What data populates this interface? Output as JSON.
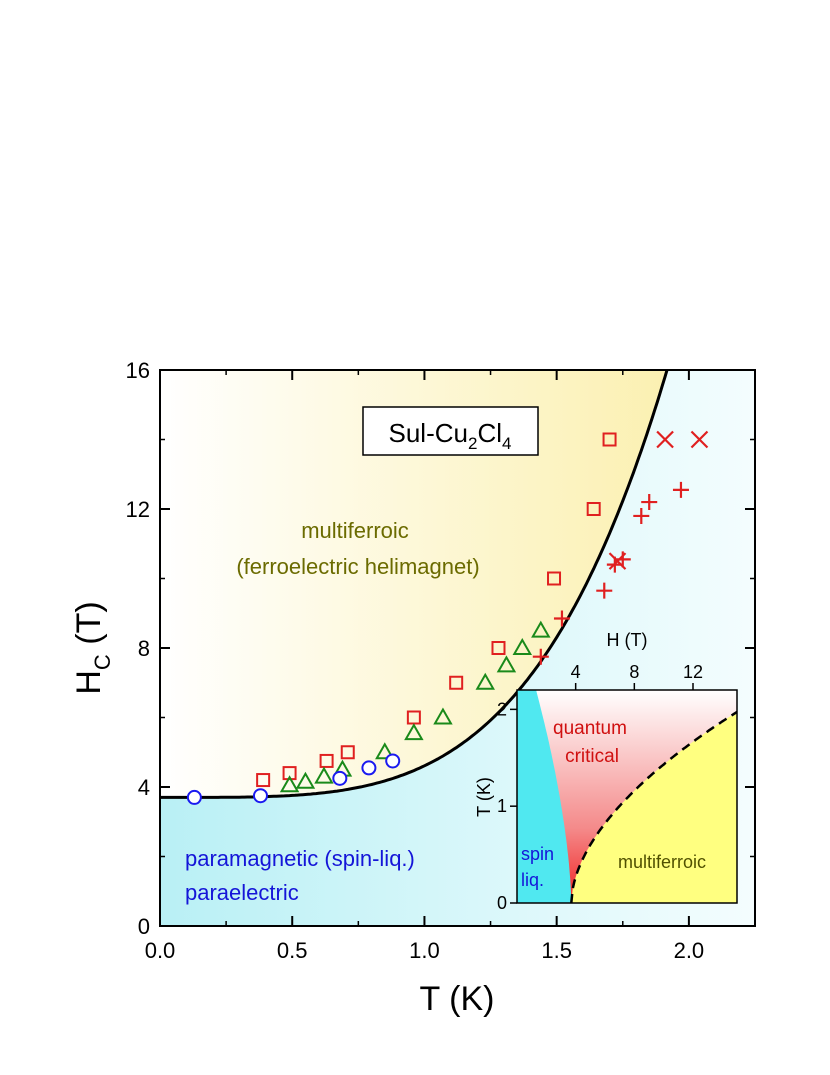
{
  "chart_data": {
    "type": "scatter",
    "title_box": {
      "prefix": "Sul-Cu",
      "sub1": "2",
      "mid": "Cl",
      "sub2": "4"
    },
    "xlabel": "T (K)",
    "ylabel": {
      "main": "H",
      "sub": "C",
      "unit": " (T)"
    },
    "xlim": [
      0.0,
      2.25
    ],
    "ylim": [
      0,
      16
    ],
    "xticks": [
      "0.0",
      "0.5",
      "1.0",
      "1.5",
      "2.0"
    ],
    "yticks": [
      "0",
      "4",
      "8",
      "12",
      "16"
    ],
    "regions": {
      "multiferroic_line1": "multiferroic",
      "multiferroic_line2": "(ferroelectric helimagnet)",
      "para_line1": "paramagnetic (spin-liq.)",
      "para_line2": "paraelectric"
    },
    "colors": {
      "multiferroic_region": "#fdf6c0",
      "para_region": "#c6f3f6",
      "squares": "#e02020",
      "triangles": "#1a8a1a",
      "circles": "#1a1af0",
      "crosses": "#e02020",
      "text_multiferroic": "#6b6b00",
      "text_para": "#1515d8"
    },
    "boundary_curve": {
      "H0": 3.7,
      "a": 0.0,
      "b": 0.0,
      "form": "H = H0 + A*T^4",
      "A": 0.91
    },
    "series": [
      {
        "marker": "open-square",
        "points": [
          [
            0.39,
            4.2
          ],
          [
            0.49,
            4.4
          ],
          [
            0.63,
            4.75
          ],
          [
            0.71,
            5.0
          ],
          [
            0.96,
            6.0
          ],
          [
            1.12,
            7.0
          ],
          [
            1.28,
            8.0
          ],
          [
            1.49,
            10.0
          ],
          [
            1.64,
            12.0
          ],
          [
            1.7,
            14.0
          ]
        ]
      },
      {
        "marker": "open-triangle",
        "points": [
          [
            0.49,
            4.05
          ],
          [
            0.55,
            4.15
          ],
          [
            0.62,
            4.3
          ],
          [
            0.69,
            4.5
          ],
          [
            0.85,
            5.0
          ],
          [
            0.96,
            5.55
          ],
          [
            1.07,
            6.0
          ],
          [
            1.23,
            7.0
          ],
          [
            1.31,
            7.5
          ],
          [
            1.37,
            8.0
          ],
          [
            1.44,
            8.5
          ]
        ]
      },
      {
        "marker": "open-circle",
        "points": [
          [
            0.13,
            3.7
          ],
          [
            0.38,
            3.75
          ],
          [
            0.68,
            4.25
          ],
          [
            0.79,
            4.55
          ],
          [
            0.88,
            4.75
          ]
        ]
      },
      {
        "marker": "plus",
        "points": [
          [
            1.44,
            7.75
          ],
          [
            1.52,
            8.85
          ],
          [
            1.68,
            9.65
          ],
          [
            1.72,
            10.4
          ],
          [
            1.75,
            10.55
          ],
          [
            1.82,
            11.8
          ],
          [
            1.85,
            12.2
          ],
          [
            1.97,
            12.55
          ]
        ]
      },
      {
        "marker": "x",
        "points": [
          [
            1.73,
            10.5
          ],
          [
            1.91,
            14.0
          ],
          [
            2.04,
            14.0
          ]
        ]
      }
    ],
    "inset": {
      "xlabel": "H (T)",
      "ylabel": "T (K)",
      "xlim": [
        0,
        15
      ],
      "ylim": [
        0,
        2.2
      ],
      "xticks": [
        "4",
        "8",
        "12"
      ],
      "yticks": [
        "0",
        "1",
        "2"
      ],
      "labels": {
        "quantum1": "quantum",
        "quantum2": "critical",
        "spin1": "spin",
        "spin2": "liq.",
        "multiferroic": "multiferroic"
      },
      "colors": {
        "spin": "#50e8f0",
        "multiferroic": "#ffff80",
        "quantum": "#f03030",
        "text_quantum": "#d01010",
        "text_spin": "#1515d8",
        "text_multi": "#505000"
      }
    }
  }
}
